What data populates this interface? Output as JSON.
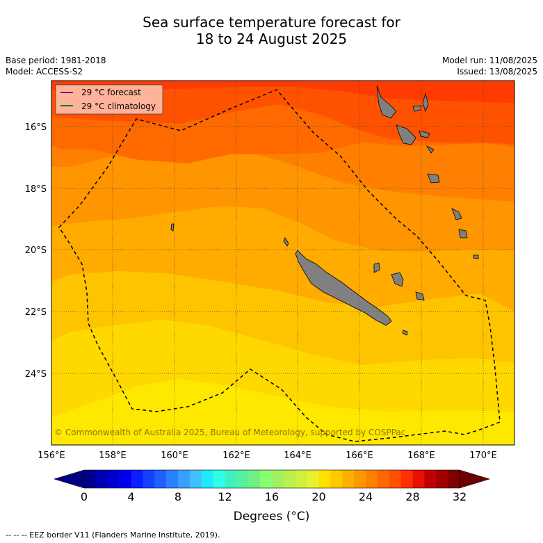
{
  "title_line1": "Sea surface temperature forecast for",
  "title_line2": "18 to 24 August 2025",
  "base_period": "Base period: 1981-2018",
  "model": "Model: ACCESS-S2",
  "model_run": "Model run: 11/08/2025",
  "issued": "Issued: 13/08/2025",
  "legend": {
    "forecast": "29 °C  forecast",
    "forecast_color": "#800080",
    "climatology": "29 °C  climatology",
    "climatology_color": "#008000"
  },
  "copyright": "© Commonwealth of Australia 2025, Bureau of Meteorology, supported by COSPPac",
  "lon_labels": [
    "156°E",
    "158°E",
    "160°E",
    "162°E",
    "164°E",
    "166°E",
    "168°E",
    "170°E"
  ],
  "lat_labels": [
    "16°S",
    "18°S",
    "20°S",
    "22°S",
    "24°S"
  ],
  "colorbar": {
    "ticks": [
      "0",
      "4",
      "8",
      "12",
      "16",
      "20",
      "24",
      "28",
      "32"
    ],
    "title": "Degrees ($^\\circ$C)",
    "title_display": "Degrees (°C)"
  },
  "footer": "--  --  -- EEZ border V11 (Flanders Marine Institute, 2019).",
  "colors": {
    "band_30": "#ff3c00",
    "band_29": "#ff5200",
    "band_28": "#ff6a00",
    "band_27": "#ff8000",
    "band_26": "#ff9500",
    "band_25": "#ffab00",
    "band_24": "#ffc400",
    "band_23": "#ffd800",
    "band_22": "#ffe800",
    "land": "#808080"
  }
}
